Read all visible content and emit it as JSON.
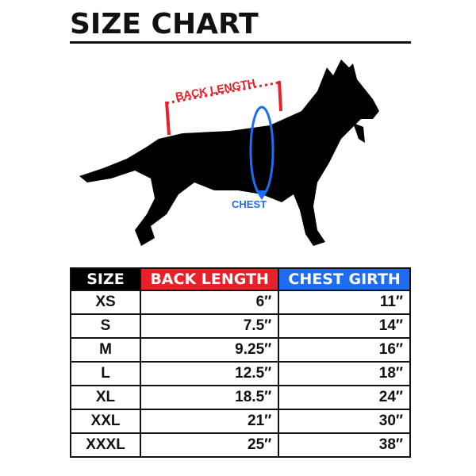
{
  "title": "SIZE CHART",
  "diagram": {
    "back_label": "BACK LENGTH",
    "chest_label": "CHEST",
    "back_color": "#e8202a",
    "chest_color": "#1e6cf2"
  },
  "table": {
    "headers": [
      "SIZE",
      "BACK LENGTH",
      "CHEST GIRTH"
    ],
    "header_colors": [
      "#000000",
      "#e8202a",
      "#1e6cf2"
    ],
    "rows": [
      [
        "XS",
        "6″",
        "11″"
      ],
      [
        "S",
        "7.5″",
        "14″"
      ],
      [
        "M",
        "9.25″",
        "16″"
      ],
      [
        "L",
        "12.5″",
        "18″"
      ],
      [
        "XL",
        "18.5″",
        "24″"
      ],
      [
        "XXL",
        "21″",
        "30″"
      ],
      [
        "XXXL",
        "25″",
        "38″"
      ]
    ]
  }
}
